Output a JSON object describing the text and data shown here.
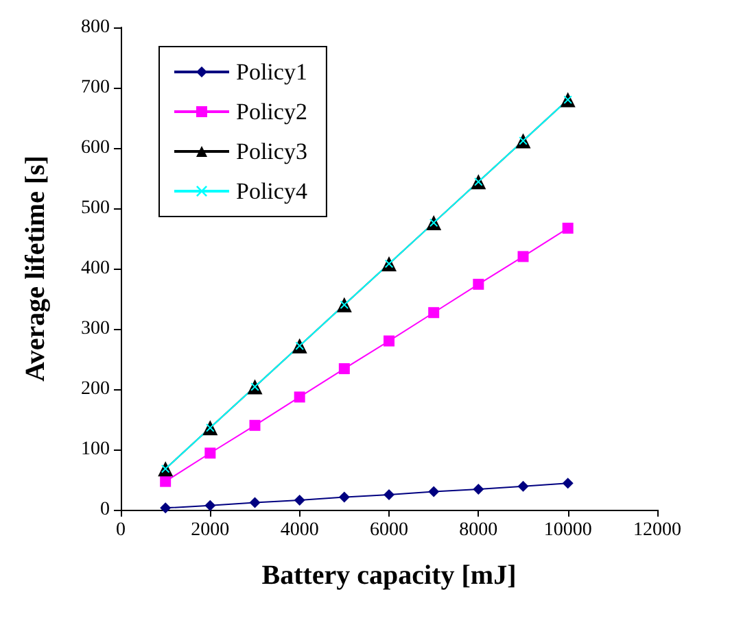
{
  "chart_data": {
    "type": "line",
    "xlabel": "Battery capacity [mJ]",
    "ylabel": "Average lifetime [s]",
    "x": [
      1000,
      2000,
      3000,
      4000,
      5000,
      6000,
      7000,
      8000,
      9000,
      10000
    ],
    "series": [
      {
        "name": "Policy1",
        "color": "#000080",
        "marker": "diamond",
        "values": [
          3,
          7,
          12,
          16,
          21,
          25,
          30,
          34,
          39,
          44
        ]
      },
      {
        "name": "Policy2",
        "color": "#ff00ff",
        "marker": "square",
        "values": [
          47,
          94,
          140,
          187,
          234,
          280,
          327,
          374,
          420,
          467
        ]
      },
      {
        "name": "Policy3",
        "color": "#000000",
        "marker": "triangle",
        "values": [
          68,
          136,
          204,
          272,
          340,
          408,
          476,
          544,
          612,
          680
        ]
      },
      {
        "name": "Policy4",
        "color": "#00ffff",
        "marker": "cross",
        "values": [
          68,
          136,
          204,
          272,
          340,
          408,
          476,
          544,
          612,
          680
        ]
      }
    ],
    "xlim": [
      0,
      12000
    ],
    "xticks": [
      0,
      2000,
      4000,
      6000,
      8000,
      10000,
      12000
    ],
    "ylim": [
      0,
      800
    ],
    "yticks": [
      0,
      100,
      200,
      300,
      400,
      500,
      600,
      700,
      800
    ],
    "grid": false,
    "legend": "top left"
  }
}
